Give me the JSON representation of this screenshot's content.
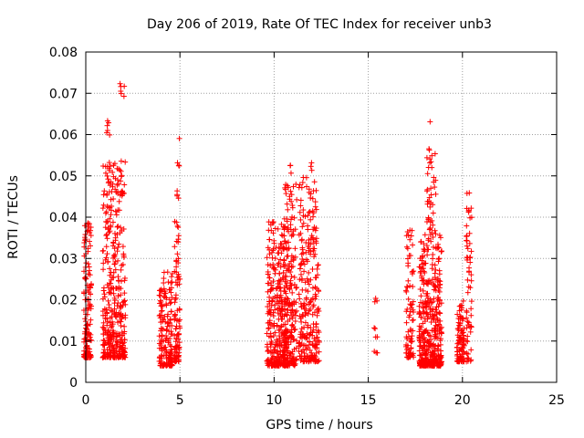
{
  "chart_data": {
    "type": "scatter",
    "title": "Day 206 of 2019, Rate Of TEC Index for receiver unb3",
    "xlabel": "GPS time / hours",
    "ylabel": "ROTI / TECUs",
    "xlim": [
      0,
      25
    ],
    "ylim": [
      0,
      0.08
    ],
    "grid": true,
    "marker": "+",
    "color": "#ff0000",
    "x_ticks": [
      0,
      5,
      10,
      15,
      20,
      25
    ],
    "x_tick_labels": [
      "0",
      "5",
      "10",
      "15",
      "20",
      "25"
    ],
    "y_ticks": [
      0,
      0.01,
      0.02,
      0.03,
      0.04,
      0.05,
      0.06,
      0.07,
      0.08
    ],
    "y_tick_labels": [
      "0",
      "0.01",
      "0.02",
      "0.03",
      "0.04",
      "0.05",
      "0.06",
      "0.07",
      "0.08"
    ],
    "clusters": [
      {
        "x": [
          -0.1,
          0.3
        ],
        "y": [
          0.006,
          0.04
        ],
        "n": 140,
        "skew": 0.6
      },
      {
        "x": [
          0.9,
          2.1
        ],
        "y": [
          0.006,
          0.054
        ],
        "n": 380,
        "skew": 0.55
      },
      {
        "x": [
          1.0,
          1.3
        ],
        "y": [
          0.059,
          0.066
        ],
        "n": 6,
        "skew": 0
      },
      {
        "x": [
          1.8,
          2.1
        ],
        "y": [
          0.069,
          0.073
        ],
        "n": 6,
        "skew": 0
      },
      {
        "x": [
          3.9,
          4.6
        ],
        "y": [
          0.004,
          0.027
        ],
        "n": 160,
        "skew": 0.6
      },
      {
        "x": [
          4.7,
          5.0
        ],
        "y": [
          0.005,
          0.039
        ],
        "n": 90,
        "skew": 0.5
      },
      {
        "x": [
          4.8,
          5.0
        ],
        "y": [
          0.043,
          0.063
        ],
        "n": 8,
        "skew": 0
      },
      {
        "x": [
          9.6,
          10.7
        ],
        "y": [
          0.004,
          0.039
        ],
        "n": 330,
        "skew": 0.6
      },
      {
        "x": [
          10.5,
          11.2
        ],
        "y": [
          0.004,
          0.048
        ],
        "n": 200,
        "skew": 0.5
      },
      {
        "x": [
          10.8,
          10.9
        ],
        "y": [
          0.05,
          0.054
        ],
        "n": 3,
        "skew": 0
      },
      {
        "x": [
          11.3,
          12.4
        ],
        "y": [
          0.005,
          0.05
        ],
        "n": 260,
        "skew": 0.5
      },
      {
        "x": [
          11.8,
          12.0
        ],
        "y": [
          0.05,
          0.054
        ],
        "n": 3,
        "skew": 0
      },
      {
        "x": [
          15.3,
          15.5
        ],
        "y": [
          0.007,
          0.021
        ],
        "n": 10,
        "skew": 0.3
      },
      {
        "x": [
          17.0,
          17.4
        ],
        "y": [
          0.006,
          0.037
        ],
        "n": 80,
        "skew": 0.5
      },
      {
        "x": [
          17.7,
          18.9
        ],
        "y": [
          0.004,
          0.036
        ],
        "n": 420,
        "skew": 0.65
      },
      {
        "x": [
          18.1,
          18.6
        ],
        "y": [
          0.036,
          0.057
        ],
        "n": 40,
        "skew": 0.2
      },
      {
        "x": [
          18.2,
          18.3
        ],
        "y": [
          0.062,
          0.064
        ],
        "n": 1,
        "skew": 0
      },
      {
        "x": [
          19.7,
          20.1
        ],
        "y": [
          0.005,
          0.02
        ],
        "n": 90,
        "skew": 0.5
      },
      {
        "x": [
          20.2,
          20.5
        ],
        "y": [
          0.005,
          0.046
        ],
        "n": 60,
        "skew": 0.3
      }
    ]
  }
}
